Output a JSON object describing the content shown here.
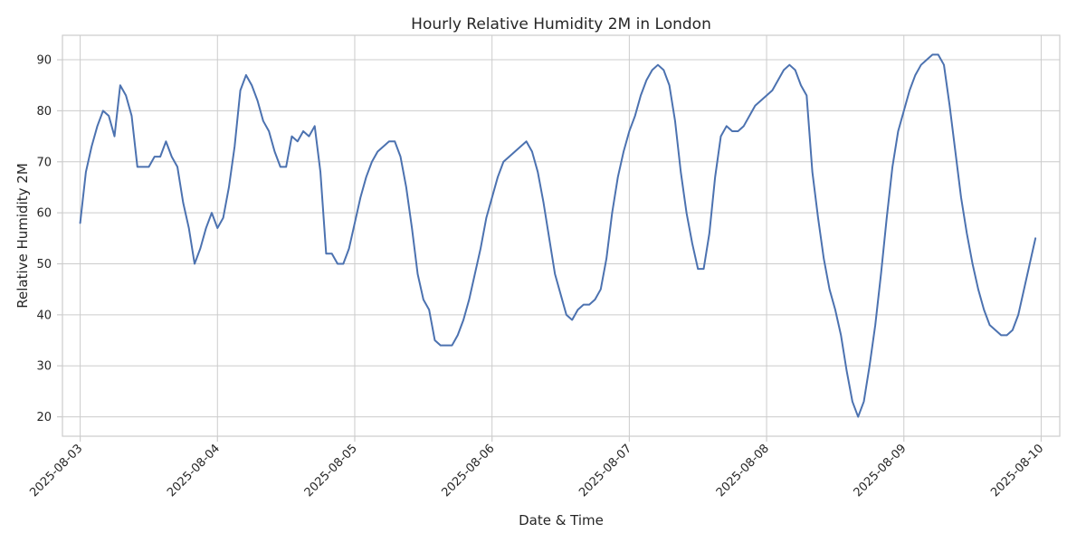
{
  "chart_data": {
    "type": "line",
    "title": "Hourly Relative Humidity 2M in London",
    "xlabel": "Date & Time",
    "ylabel": "Relative Humidity 2M",
    "color": "#4c72b0",
    "grid": true,
    "x_start": "2025-08-03T00:00",
    "x_step_hours": 1,
    "x_ticks": [
      "2025-08-03",
      "2025-08-04",
      "2025-08-05",
      "2025-08-06",
      "2025-08-07",
      "2025-08-08",
      "2025-08-09",
      "2025-08-10"
    ],
    "y_ticks": [
      20,
      30,
      40,
      50,
      60,
      70,
      80,
      90
    ],
    "ylim": [
      16.2,
      94.8
    ],
    "xlim": [
      "2025-08-02T20:54",
      "2025-08-10T03:15"
    ],
    "series": [
      {
        "values": [
          58,
          68,
          73,
          77,
          80,
          79,
          75,
          85,
          83,
          79,
          69,
          69,
          69,
          71,
          71,
          74,
          71,
          69,
          62,
          57,
          50,
          53,
          57,
          60,
          57,
          59,
          65,
          73,
          84,
          87,
          85,
          82,
          78,
          76,
          72,
          69,
          69,
          75,
          74,
          76,
          75,
          77,
          68,
          52,
          52,
          50,
          50,
          53,
          58,
          63,
          67,
          70,
          72,
          73,
          74,
          74,
          71,
          65,
          57,
          48,
          43,
          41,
          35,
          34,
          34,
          34,
          36,
          39,
          43,
          48,
          53,
          59,
          63,
          67,
          70,
          71,
          72,
          73,
          74,
          72,
          68,
          62,
          55,
          48,
          44,
          40,
          39,
          41,
          42,
          42,
          43,
          45,
          51,
          60,
          67,
          72,
          76,
          79,
          83,
          86,
          88,
          89,
          88,
          85,
          78,
          68,
          60,
          54,
          49,
          49,
          56,
          67,
          75,
          77,
          76,
          76,
          77,
          79,
          81,
          82,
          83,
          84,
          86,
          88,
          89,
          88,
          85,
          83,
          68,
          59,
          51,
          45,
          41,
          36,
          29,
          23,
          20,
          23,
          30,
          38,
          48,
          59,
          69,
          76,
          80,
          84,
          87,
          89,
          90,
          91,
          91,
          89,
          81,
          72,
          63,
          56,
          50,
          45,
          41,
          38,
          37,
          36,
          36,
          37,
          40,
          45,
          50,
          55
        ]
      }
    ]
  }
}
